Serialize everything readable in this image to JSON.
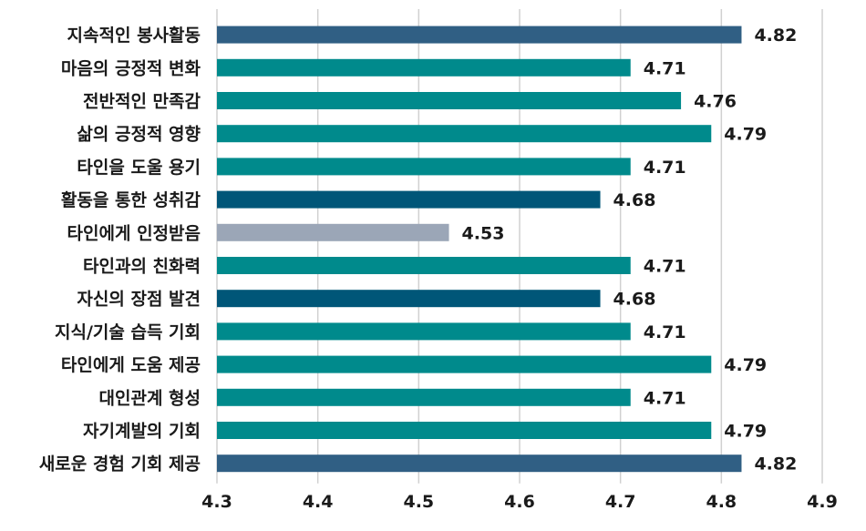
{
  "chart_data": {
    "type": "bar",
    "orientation": "horizontal",
    "title": "",
    "xlabel": "",
    "ylabel": "",
    "xlim": [
      4.3,
      4.9
    ],
    "ticks": [
      "4.3",
      "4.4",
      "4.5",
      "4.6",
      "4.7",
      "4.8",
      "4.9"
    ],
    "tick_values": [
      4.3,
      4.4,
      4.5,
      4.6,
      4.7,
      4.8,
      4.9
    ],
    "grid": true,
    "categories": [
      "지속적인 봉사활동",
      "마음의 긍정적 변화",
      "전반적인 만족감",
      "삶의 긍정적 영향",
      "타인을 도울 용기",
      "활동을 통한 성취감",
      "타인에게 인정받음",
      "타인과의 친화력",
      "자신의 장점 발견",
      "지식/기술 습득 기회",
      "타인에게 도움 제공",
      "대인관계 형성",
      "자기계발의 기회",
      "새로운 경험 기회 제공"
    ],
    "values": [
      4.82,
      4.71,
      4.76,
      4.79,
      4.71,
      4.68,
      4.53,
      4.71,
      4.68,
      4.71,
      4.79,
      4.71,
      4.79,
      4.82
    ],
    "value_labels": [
      "4.82",
      "4.71",
      "4.76",
      "4.79",
      "4.71",
      "4.68",
      "4.53",
      "4.71",
      "4.68",
      "4.71",
      "4.79",
      "4.71",
      "4.79",
      "4.82"
    ],
    "colors": [
      "#305f84",
      "#008a8c",
      "#008a8c",
      "#008a8c",
      "#008a8c",
      "#005678",
      "#9ba6b7",
      "#008a8c",
      "#005678",
      "#008a8c",
      "#008a8c",
      "#008a8c",
      "#008a8c",
      "#305f84"
    ]
  }
}
